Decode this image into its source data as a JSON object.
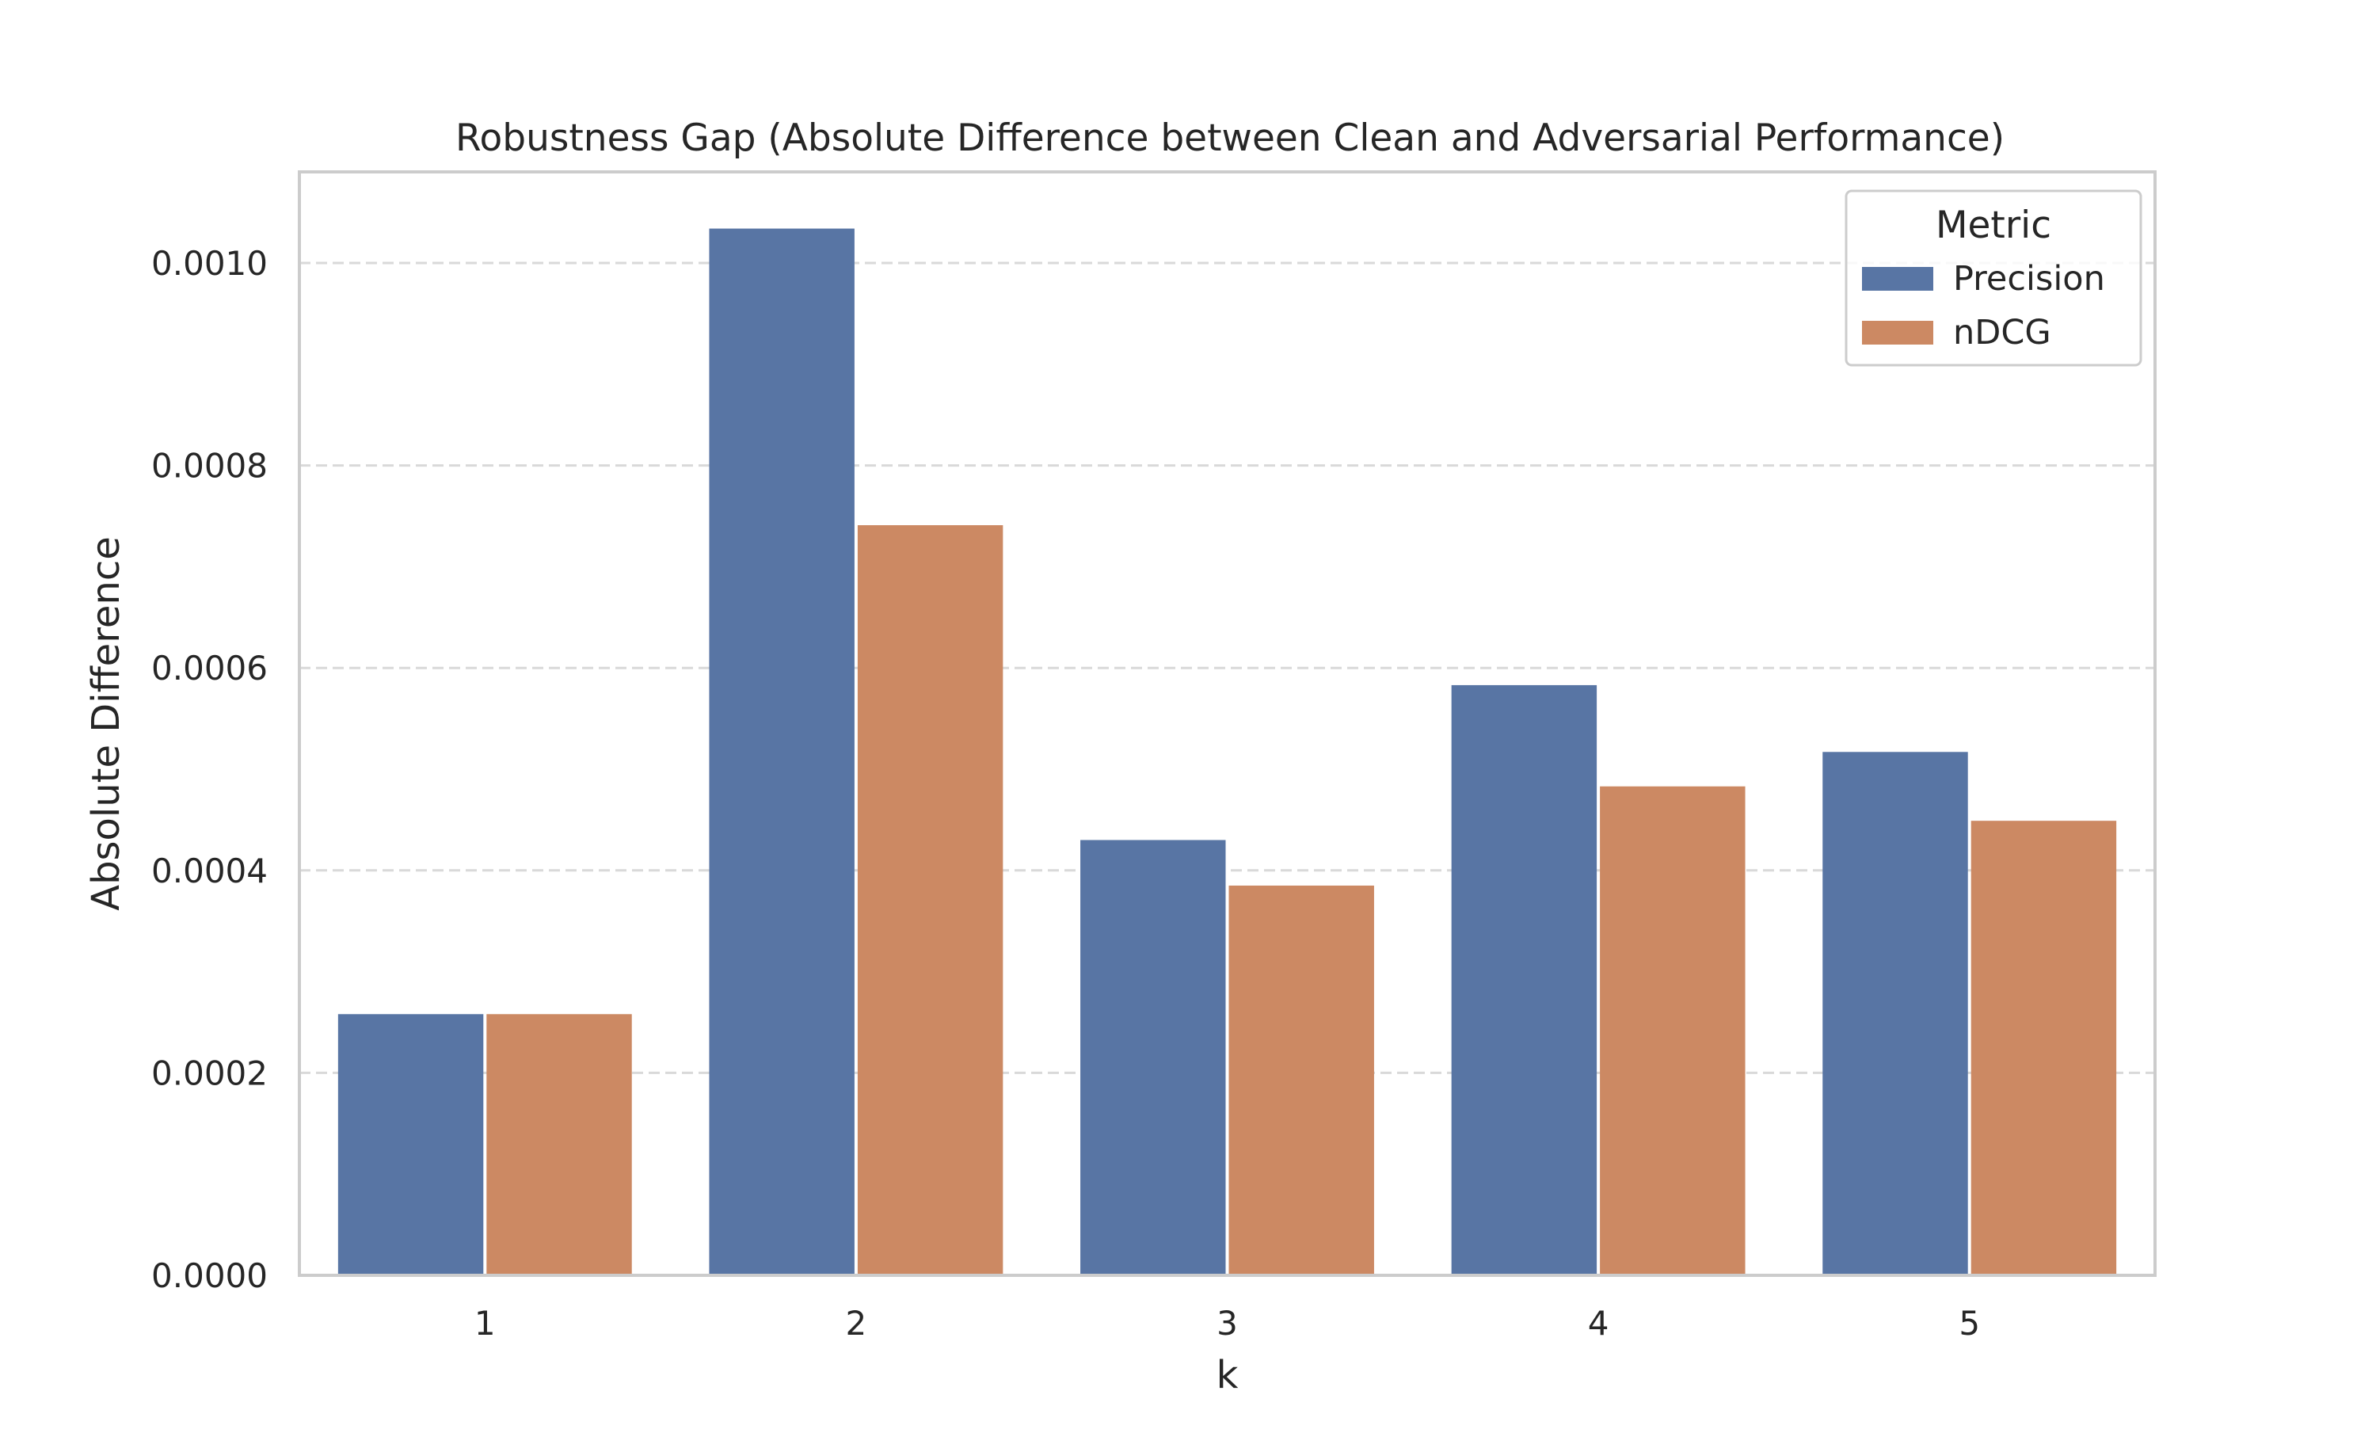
{
  "chart_data": {
    "type": "bar",
    "title": "Robustness Gap (Absolute Difference between Clean and Adversarial Performance)",
    "xlabel": "k",
    "ylabel": "Absolute Difference",
    "categories": [
      "1",
      "2",
      "3",
      "4",
      "5"
    ],
    "series": [
      {
        "name": "Precision",
        "color": "#5875a4",
        "values": [
          0.000258,
          0.001034,
          0.00043,
          0.000583,
          0.000517
        ]
      },
      {
        "name": "nDCG",
        "color": "#cc8963",
        "values": [
          0.000258,
          0.000741,
          0.000385,
          0.000483,
          0.000449
        ]
      }
    ],
    "ylim": [
      0,
      0.00109
    ],
    "yticks": [
      "0.0000",
      "0.0002",
      "0.0004",
      "0.0006",
      "0.0008",
      "0.0010"
    ],
    "grid": "horizontal dashed",
    "legend": {
      "title": "Metric",
      "position": "top-right"
    }
  }
}
